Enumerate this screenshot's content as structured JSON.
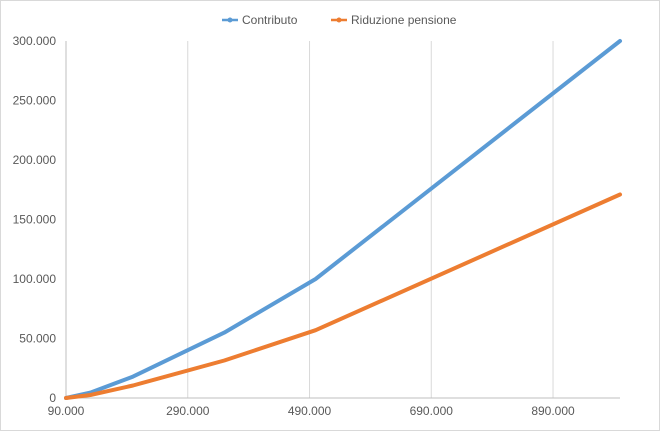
{
  "chart_data": {
    "type": "line",
    "title": "",
    "xlabel": "",
    "ylabel": "",
    "xlim": [
      90000,
      1000000
    ],
    "ylim": [
      0,
      300000
    ],
    "x_ticks": [
      90000,
      290000,
      490000,
      690000,
      890000
    ],
    "x_tick_labels": [
      "90.000",
      "290.000",
      "490.000",
      "690.000",
      "890.000"
    ],
    "y_ticks": [
      0,
      50000,
      100000,
      150000,
      200000,
      250000,
      300000
    ],
    "y_tick_labels": [
      "0",
      "50.000",
      "100.000",
      "150.000",
      "200.000",
      "250.000",
      "300.000"
    ],
    "grid": "vertical",
    "legend_position": "top",
    "series": [
      {
        "name": "Contributo",
        "color": "#5b9bd5",
        "x": [
          90000,
          130000,
          200000,
          350000,
          500000,
          1000000
        ],
        "y": [
          0,
          4500,
          18000,
          55000,
          100000,
          300000
        ]
      },
      {
        "name": "Riduzione pensione",
        "color": "#ed7d31",
        "x": [
          90000,
          130000,
          200000,
          350000,
          500000,
          1000000
        ],
        "y": [
          0,
          2500,
          10500,
          31500,
          57000,
          171000
        ]
      }
    ]
  }
}
